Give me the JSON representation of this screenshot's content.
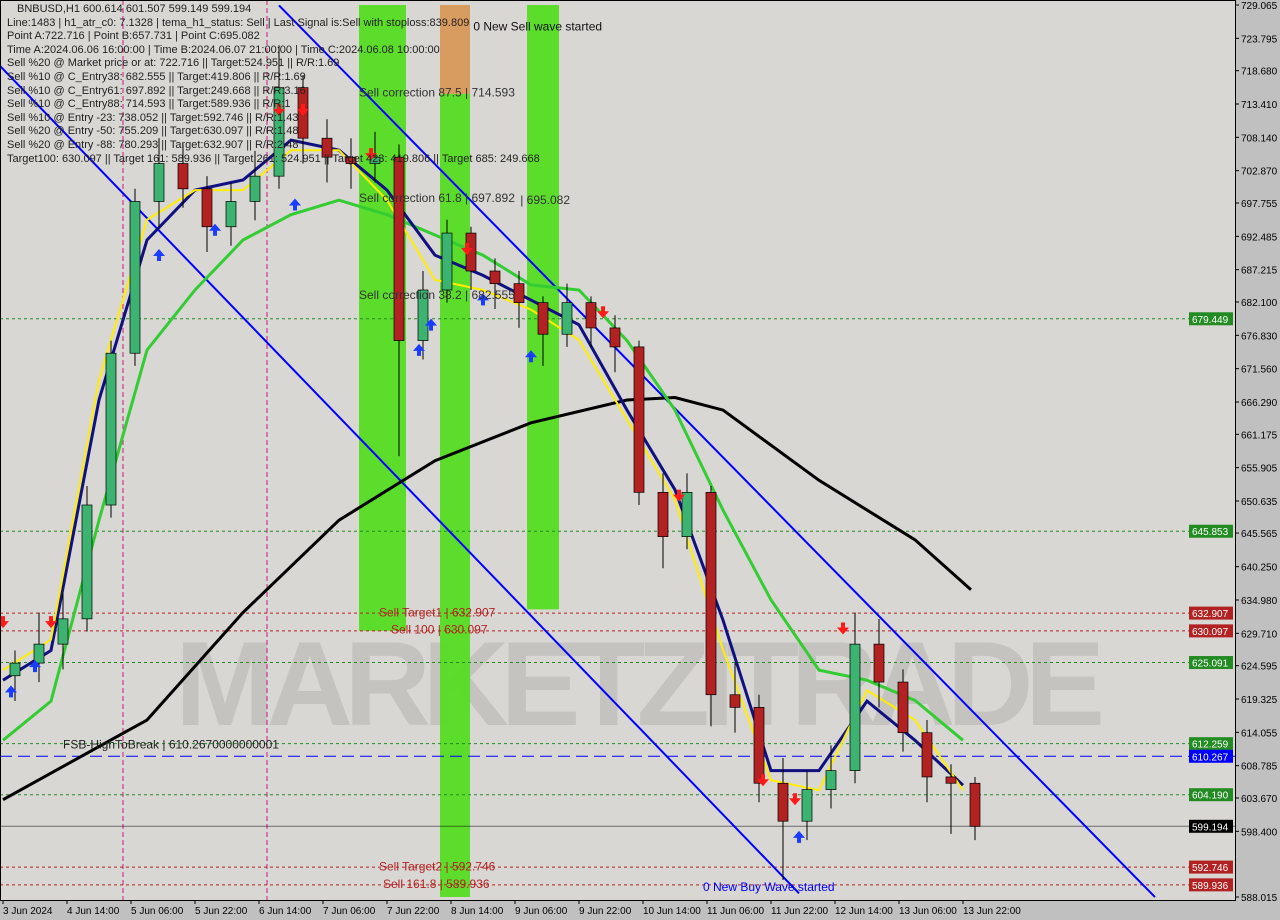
{
  "header": {
    "symbol_line": "BNBUSD,H1  600.614 601.507 599.149 599.194",
    "info_lines": [
      "Line:1483 | h1_atr_c0: 7.1328 | tema_h1_status: Sell | Last Signal is:Sell with stoploss:839.809",
      "Point A:722.716 | Point B:657.731 | Point C:695.082",
      "Time A:2024.06.06 16:00:00 | Time B:2024.06.07 21:00:00 | Time C:2024.06.08 10:00:00",
      "Sell %20 @ Market price or at: 722.716 || Target:524.951 || R/R:1.69",
      "Sell %10 @ C_Entry38: 682.555 || Target:419.806 || R/R:1.69",
      "Sell %10 @ C_Entry61: 697.892 || Target:249.668 || R/R:3.16",
      "Sell %10 @ C_Entry88: 714.593 || Target:589.936 || R/R:1",
      "Sell %10 @ Entry -23: 738.052 || Target:592.746 || R/R:1.43",
      "Sell %20 @ Entry -50: 755.209 || Target:630.097 || R/R:1.48",
      "Sell %20 @ Entry -88: 780.293 || Target:632.907 || R/R:2.48",
      "Target100: 630.097 || Target 161: 589.936 || Target 261: 524.951 || Target 423: 419.806 || Target 685: 249.668"
    ]
  },
  "watermark": "MARKETZITRADE",
  "chart_data": {
    "type": "candlestick",
    "symbol": "BNBUSD",
    "timeframe": "H1",
    "ylim": [
      588.015,
      729.065
    ],
    "xlim": [
      "2024-06-03 21:00",
      "2024-06-14 17:00"
    ],
    "grid": false,
    "colors": {
      "background": "#d8d7d4",
      "bull": "#3cb371",
      "bear": "#b22222",
      "ma200": "#000000",
      "ma_green": "#33cc33",
      "ma_navy": "#101080",
      "ma_yellow": "#ffee00",
      "channel": "#0000ff"
    },
    "price_ticks": [
      "729.065",
      "723.795",
      "718.680",
      "713.410",
      "708.140",
      "702.870",
      "697.755",
      "692.485",
      "687.215",
      "682.100",
      "676.830",
      "671.560",
      "666.290",
      "661.175",
      "655.905",
      "650.635",
      "645.565",
      "640.250",
      "634.980",
      "629.710",
      "624.595",
      "619.325",
      "614.055",
      "608.785",
      "603.670",
      "598.400",
      "588.015"
    ],
    "time_ticks": [
      {
        "label": "3 Jun 2024",
        "t": "2024-06-03 22:00"
      },
      {
        "label": "4 Jun 14:00",
        "t": "2024-06-04 14:00"
      },
      {
        "label": "5 Jun 06:00",
        "t": "2024-06-05 06:00"
      },
      {
        "label": "5 Jun 22:00",
        "t": "2024-06-05 22:00"
      },
      {
        "label": "6 Jun 14:00",
        "t": "2024-06-06 14:00"
      },
      {
        "label": "7 Jun 06:00",
        "t": "2024-06-07 06:00"
      },
      {
        "label": "7 Jun 22:00",
        "t": "2024-06-07 22:00"
      },
      {
        "label": "8 Jun 14:00",
        "t": "2024-06-08 14:00"
      },
      {
        "label": "9 Jun 06:00",
        "t": "2024-06-09 06:00"
      },
      {
        "label": "9 Jun 22:00",
        "t": "2024-06-09 22:00"
      },
      {
        "label": "10 Jun 14:00",
        "t": "2024-06-10 14:00"
      },
      {
        "label": "11 Jun 06:00",
        "t": "2024-06-11 06:00"
      },
      {
        "label": "11 Jun 22:00",
        "t": "2024-06-11 22:00"
      },
      {
        "label": "12 Jun 14:00",
        "t": "2024-06-12 14:00"
      },
      {
        "label": "13 Jun 06:00",
        "t": "2024-06-13 06:00"
      },
      {
        "label": "13 Jun 22:00",
        "t": "2024-06-13 22:00"
      }
    ],
    "candles": [
      [
        "2024-06-03 22:00",
        623,
        627,
        619,
        625
      ],
      [
        "2024-06-04 04:00",
        625,
        633,
        622,
        628
      ],
      [
        "2024-06-04 10:00",
        628,
        636,
        624,
        632
      ],
      [
        "2024-06-04 16:00",
        632,
        653,
        630,
        650
      ],
      [
        "2024-06-04 22:00",
        650,
        676,
        648,
        674
      ],
      [
        "2024-06-05 04:00",
        674,
        700,
        672,
        698
      ],
      [
        "2024-06-05 10:00",
        698,
        708,
        694,
        704
      ],
      [
        "2024-06-05 16:00",
        704,
        707,
        697,
        700
      ],
      [
        "2024-06-05 22:00",
        700,
        702,
        690,
        694
      ],
      [
        "2024-06-06 04:00",
        694,
        701,
        691,
        698
      ],
      [
        "2024-06-06 10:00",
        698,
        706,
        695,
        702
      ],
      [
        "2024-06-06 16:00",
        702,
        722.7,
        700,
        716
      ],
      [
        "2024-06-06 22:00",
        716,
        718,
        704,
        708
      ],
      [
        "2024-06-07 04:00",
        708,
        711,
        701,
        705
      ],
      [
        "2024-06-07 10:00",
        705,
        708,
        700,
        704
      ],
      [
        "2024-06-07 16:00",
        704,
        709,
        701,
        705
      ],
      [
        "2024-06-07 22:00",
        705,
        707,
        657.7,
        676
      ],
      [
        "2024-06-08 04:00",
        676,
        687,
        673,
        684
      ],
      [
        "2024-06-08 10:00",
        684,
        695.1,
        682,
        693
      ],
      [
        "2024-06-08 16:00",
        693,
        694,
        684,
        687
      ],
      [
        "2024-06-08 22:00",
        687,
        689,
        681,
        685
      ],
      [
        "2024-06-09 04:00",
        685,
        687,
        678,
        682
      ],
      [
        "2024-06-09 10:00",
        682,
        683,
        672,
        677
      ],
      [
        "2024-06-09 16:00",
        677,
        685,
        675,
        682
      ],
      [
        "2024-06-09 22:00",
        682,
        683,
        675,
        678
      ],
      [
        "2024-06-10 04:00",
        678,
        680,
        671,
        675
      ],
      [
        "2024-06-10 10:00",
        675,
        676,
        650,
        652
      ],
      [
        "2024-06-10 16:00",
        652,
        655,
        640,
        645
      ],
      [
        "2024-06-10 22:00",
        645,
        655,
        643,
        652
      ],
      [
        "2024-06-11 04:00",
        652,
        653,
        615,
        620
      ],
      [
        "2024-06-11 10:00",
        620,
        625,
        614,
        618
      ],
      [
        "2024-06-11 16:00",
        618,
        620,
        603,
        606
      ],
      [
        "2024-06-11 22:00",
        606,
        610,
        590.7,
        600
      ],
      [
        "2024-06-12 04:00",
        600,
        608,
        597,
        605
      ],
      [
        "2024-06-12 10:00",
        605,
        612,
        602,
        608
      ],
      [
        "2024-06-12 16:00",
        608,
        633,
        606,
        628
      ],
      [
        "2024-06-12 22:00",
        628,
        632,
        618,
        622
      ],
      [
        "2024-06-13 04:00",
        622,
        624,
        611,
        614
      ],
      [
        "2024-06-13 10:00",
        614,
        616,
        603,
        607
      ],
      [
        "2024-06-13 16:00",
        607,
        609,
        598,
        606
      ],
      [
        "2024-06-13 22:00",
        606,
        607,
        597,
        599.194
      ]
    ],
    "series": [
      {
        "key": "ma200",
        "points": [
          [
            "2024-06-03 22:00",
            603.4
          ],
          [
            "2024-06-05 10:00",
            616
          ],
          [
            "2024-06-06 10:00",
            633
          ],
          [
            "2024-06-07 10:00",
            647.6
          ],
          [
            "2024-06-08 10:00",
            657
          ],
          [
            "2024-06-09 10:00",
            663
          ],
          [
            "2024-06-10 10:00",
            666.6
          ],
          [
            "2024-06-10 22:00",
            667
          ],
          [
            "2024-06-11 10:00",
            665
          ],
          [
            "2024-06-12 10:00",
            653.9
          ],
          [
            "2024-06-13 10:00",
            644.5
          ],
          [
            "2024-06-14 00:00",
            636.6
          ]
        ]
      },
      {
        "key": "ma_green",
        "points": [
          [
            "2024-06-03 22:00",
            612.8
          ],
          [
            "2024-06-04 10:00",
            619
          ],
          [
            "2024-06-04 22:00",
            647.6
          ],
          [
            "2024-06-05 10:00",
            674.5
          ],
          [
            "2024-06-05 22:00",
            684
          ],
          [
            "2024-06-06 10:00",
            691.9
          ],
          [
            "2024-06-06 22:00",
            695.9
          ],
          [
            "2024-06-07 10:00",
            698.2
          ],
          [
            "2024-06-07 22:00",
            695.9
          ],
          [
            "2024-06-08 10:00",
            692.7
          ],
          [
            "2024-06-08 22:00",
            689.5
          ],
          [
            "2024-06-09 10:00",
            684.8
          ],
          [
            "2024-06-09 22:00",
            684
          ],
          [
            "2024-06-10 10:00",
            676
          ],
          [
            "2024-06-10 22:00",
            665
          ],
          [
            "2024-06-11 10:00",
            649.2
          ],
          [
            "2024-06-11 22:00",
            635
          ],
          [
            "2024-06-12 10:00",
            623.9
          ],
          [
            "2024-06-12 22:00",
            622.3
          ],
          [
            "2024-06-13 10:00",
            619.1
          ],
          [
            "2024-06-13 22:00",
            612.8
          ]
        ]
      },
      {
        "key": "ma_navy",
        "points": [
          [
            "2024-06-03 22:00",
            622.3
          ],
          [
            "2024-06-04 10:00",
            627
          ],
          [
            "2024-06-04 22:00",
            666.6
          ],
          [
            "2024-06-05 10:00",
            691.9
          ],
          [
            "2024-06-05 22:00",
            699.8
          ],
          [
            "2024-06-06 10:00",
            701.4
          ],
          [
            "2024-06-06 22:00",
            707.7
          ],
          [
            "2024-06-07 10:00",
            706.1
          ],
          [
            "2024-06-07 22:00",
            699.8
          ],
          [
            "2024-06-08 10:00",
            689.5
          ],
          [
            "2024-06-08 22:00",
            686.3
          ],
          [
            "2024-06-09 10:00",
            682.4
          ],
          [
            "2024-06-09 22:00",
            678.5
          ],
          [
            "2024-06-10 10:00",
            665
          ],
          [
            "2024-06-10 22:00",
            652.4
          ],
          [
            "2024-06-11 10:00",
            631.8
          ],
          [
            "2024-06-11 22:00",
            608
          ],
          [
            "2024-06-12 10:00",
            608
          ],
          [
            "2024-06-12 22:00",
            619
          ],
          [
            "2024-06-13 10:00",
            612.8
          ],
          [
            "2024-06-13 22:00",
            605.7
          ]
        ]
      },
      {
        "key": "ma_yellow",
        "points": [
          [
            "2024-06-03 22:00",
            623.9
          ],
          [
            "2024-06-04 10:00",
            628.7
          ],
          [
            "2024-06-04 22:00",
            669.8
          ],
          [
            "2024-06-05 10:00",
            695.1
          ],
          [
            "2024-06-05 22:00",
            699.8
          ],
          [
            "2024-06-06 10:00",
            699.8
          ],
          [
            "2024-06-06 22:00",
            706.1
          ],
          [
            "2024-06-07 10:00",
            706.1
          ],
          [
            "2024-06-07 22:00",
            698.2
          ],
          [
            "2024-06-08 10:00",
            685.6
          ],
          [
            "2024-06-08 22:00",
            684
          ],
          [
            "2024-06-09 10:00",
            680.9
          ],
          [
            "2024-06-09 22:00",
            676.1
          ],
          [
            "2024-06-10 10:00",
            663.5
          ],
          [
            "2024-06-10 22:00",
            650.8
          ],
          [
            "2024-06-11 10:00",
            627.1
          ],
          [
            "2024-06-11 22:00",
            606.5
          ],
          [
            "2024-06-12 10:00",
            604.9
          ],
          [
            "2024-06-12 22:00",
            620.7
          ],
          [
            "2024-06-13 10:00",
            616
          ],
          [
            "2024-06-13 22:00",
            604.9
          ]
        ]
      }
    ],
    "channel_lines": [
      [
        [
          "2024-06-03 21:00",
          719.6
        ],
        [
          "2024-06-12 05:00",
          588.6
        ]
      ],
      [
        [
          "2024-06-06 19:00",
          729.0
        ],
        [
          "2024-06-15 22:00",
          588.0
        ]
      ]
    ],
    "bands": [
      {
        "color": "#55dd22",
        "t1": "2024-06-07 15:00",
        "t2": "2024-06-08 02:45",
        "p1": 729.065,
        "p2": 630.1
      },
      {
        "color": "#d9995a",
        "t1": "2024-06-08 11:15",
        "t2": "2024-06-08 18:45",
        "p1": 729.065,
        "p2": 715.0
      },
      {
        "color": "#55dd22",
        "t1": "2024-06-08 11:15",
        "t2": "2024-06-08 18:45",
        "p1": 715.0,
        "p2": 588.015
      },
      {
        "color": "#55dd22",
        "t1": "2024-06-09 09:00",
        "t2": "2024-06-09 17:00",
        "p1": 729.065,
        "p2": 633.5
      }
    ],
    "vlines": [
      {
        "t": "2024-06-05 04:00",
        "color": "#c0207a"
      },
      {
        "t": "2024-06-06 16:00",
        "color": "#c0207a"
      }
    ],
    "levels": [
      {
        "price": 679.449,
        "label": "679.449",
        "color": "#228b22",
        "style": "dot"
      },
      {
        "price": 645.853,
        "label": "645.853",
        "color": "#228b22",
        "style": "dot"
      },
      {
        "price": 632.907,
        "label": "632.907",
        "color": "#b22222",
        "style": "dot"
      },
      {
        "price": 630.097,
        "label": "630.097",
        "color": "#b22222",
        "style": "dot"
      },
      {
        "price": 625.091,
        "label": "625.091",
        "color": "#228b22",
        "style": "dot"
      },
      {
        "price": 612.259,
        "label": "612.259",
        "color": "#228b22",
        "style": "dot"
      },
      {
        "price": 610.267,
        "label": "610.267",
        "color": "#0000ff",
        "style": "dash"
      },
      {
        "price": 604.19,
        "label": "604.190",
        "color": "#228b22",
        "style": "dot"
      },
      {
        "price": 599.194,
        "label": "599.194",
        "color": "#000000",
        "style": "solid"
      },
      {
        "price": 592.746,
        "label": "592.746",
        "color": "#b22222",
        "style": "dot"
      },
      {
        "price": 589.936,
        "label": "589.936",
        "color": "#b22222",
        "style": "dot"
      }
    ],
    "annotations": [
      {
        "text": "Sell correction 87.5 | 714.593",
        "t": "2024-06-07 15:00",
        "price": 714.593,
        "color": "#333333"
      },
      {
        "text": "Sell correction 61.8 | 697.892",
        "t": "2024-06-07 15:00",
        "price": 697.892,
        "color": "#333333"
      },
      {
        "text": "| 695.082",
        "t": "2024-06-08 03:00",
        "price": 697.6,
        "color": "#333333"
      },
      {
        "text": "Sell correction 38.2 | 682.555",
        "t": "2024-06-07 15:00",
        "price": 682.555,
        "color": "#333333"
      },
      {
        "text": "Sell Target1 | 632.907",
        "t": "2024-06-07 20:00",
        "price": 632.4,
        "color": "#b22222"
      },
      {
        "text": "Sell 100 | 630.097",
        "t": "2024-06-07 23:00",
        "price": 629.7,
        "color": "#b22222"
      },
      {
        "text": "Sell Target2 | 592.746",
        "t": "2024-06-07 20:00",
        "price": 592.2,
        "color": "#b22222"
      },
      {
        "text": "Sell 161.8 | 589.936",
        "t": "2024-06-07 21:00",
        "price": 589.4,
        "color": "#b22222"
      },
      {
        "text": "FSB-HighToBreak | 610.2670000000001",
        "t": "2024-06-04 13:00",
        "price": 611.5,
        "color": "#222222"
      },
      {
        "text": "0 New Sell wave started",
        "t": "2024-06-06 16:00",
        "price": 725.0,
        "color": "#111111"
      },
      {
        "text": "0 New Buy Wave started",
        "t": "2024-06-11 05:00",
        "price": 589.0,
        "color": "#0000ff"
      }
    ],
    "signals": [
      {
        "type": "sell",
        "t": "2024-06-03 22:00",
        "price": 631
      },
      {
        "type": "buy",
        "t": "2024-06-04 00:00",
        "price": 621
      },
      {
        "type": "buy",
        "t": "2024-06-04 06:00",
        "price": 625
      },
      {
        "type": "sell",
        "t": "2024-06-04 10:00",
        "price": 631
      },
      {
        "type": "buy",
        "t": "2024-06-05 13:00",
        "price": 690
      },
      {
        "type": "buy",
        "t": "2024-06-06 03:00",
        "price": 694
      },
      {
        "type": "sell",
        "t": "2024-06-06 19:00",
        "price": 712
      },
      {
        "type": "sell",
        "t": "2024-06-07 01:00",
        "price": 712
      },
      {
        "type": "buy",
        "t": "2024-06-06 23:00",
        "price": 698
      },
      {
        "type": "sell",
        "t": "2024-06-07 18:00",
        "price": 705
      },
      {
        "type": "buy",
        "t": "2024-06-08 06:00",
        "price": 675
      },
      {
        "type": "buy",
        "t": "2024-06-08 09:00",
        "price": 679
      },
      {
        "type": "sell",
        "t": "2024-06-08 18:00",
        "price": 690
      },
      {
        "type": "buy",
        "t": "2024-06-08 22:00",
        "price": 683
      },
      {
        "type": "buy",
        "t": "2024-06-09 10:00",
        "price": 674
      },
      {
        "type": "sell",
        "t": "2024-06-10 04:00",
        "price": 680
      },
      {
        "type": "sell",
        "t": "2024-06-10 23:00",
        "price": 651
      },
      {
        "type": "sell",
        "t": "2024-06-11 20:00",
        "price": 606
      },
      {
        "type": "sell",
        "t": "2024-06-12 04:00",
        "price": 603
      },
      {
        "type": "buy",
        "t": "2024-06-12 05:00",
        "price": 598
      },
      {
        "type": "sell",
        "t": "2024-06-12 16:00",
        "price": 630
      }
    ]
  }
}
